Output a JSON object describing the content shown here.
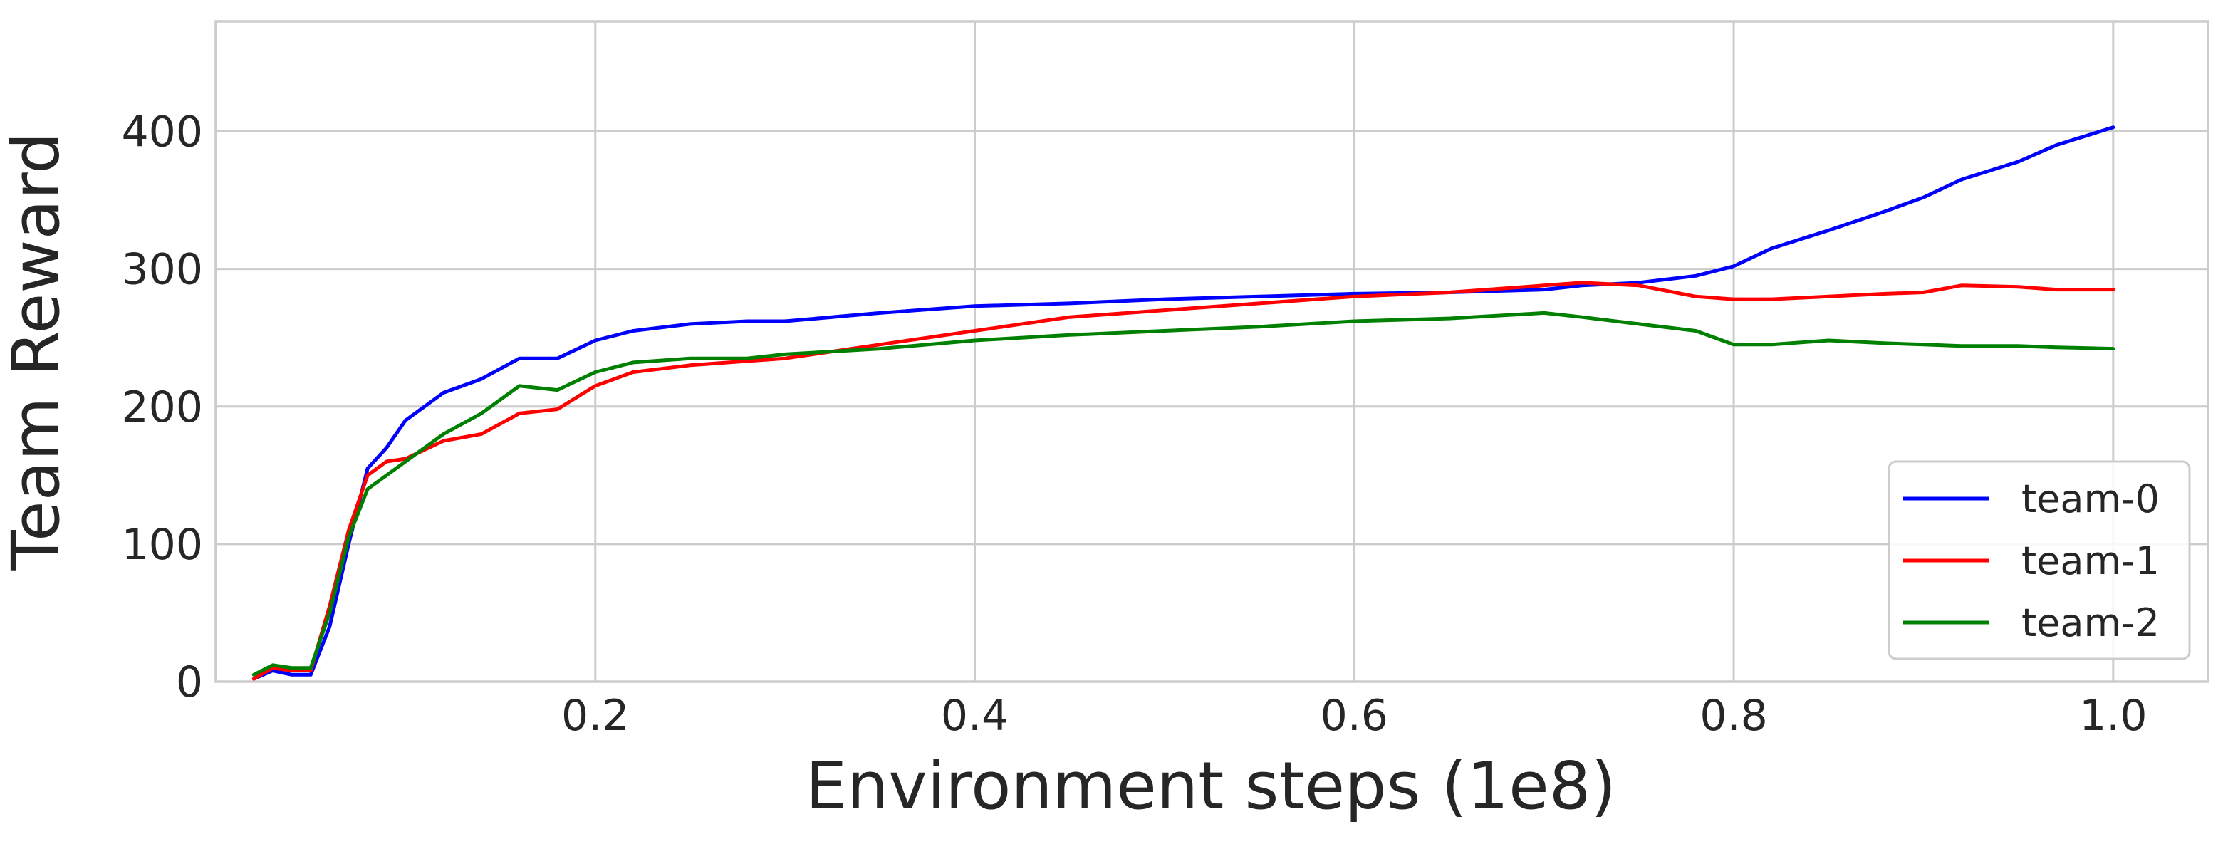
{
  "chart_data": {
    "type": "line",
    "title": "",
    "xlabel": "Environment steps (1e8)",
    "ylabel": "Team Reward",
    "xlim": [
      0.0,
      1.05
    ],
    "ylim": [
      0,
      480
    ],
    "xticks": [
      0.2,
      0.4,
      0.6,
      0.8,
      1.0
    ],
    "xtick_labels": [
      "0.2",
      "0.4",
      "0.6",
      "0.8",
      "1.0"
    ],
    "yticks": [
      0,
      100,
      200,
      300,
      400
    ],
    "ytick_labels": [
      "0",
      "100",
      "200",
      "300",
      "400"
    ],
    "grid": true,
    "legend_position": "lower-right",
    "series": [
      {
        "name": "team-0",
        "color": "#0000ff",
        "x": [
          0.02,
          0.03,
          0.04,
          0.05,
          0.06,
          0.07,
          0.08,
          0.09,
          0.1,
          0.12,
          0.14,
          0.16,
          0.18,
          0.2,
          0.22,
          0.25,
          0.28,
          0.3,
          0.35,
          0.4,
          0.45,
          0.5,
          0.55,
          0.6,
          0.65,
          0.7,
          0.72,
          0.75,
          0.78,
          0.8,
          0.82,
          0.85,
          0.88,
          0.9,
          0.92,
          0.95,
          0.97,
          1.0
        ],
        "y": [
          2,
          8,
          5,
          5,
          40,
          100,
          155,
          170,
          190,
          210,
          220,
          235,
          235,
          248,
          255,
          260,
          262,
          262,
          268,
          273,
          275,
          278,
          280,
          282,
          283,
          285,
          288,
          290,
          295,
          302,
          315,
          328,
          342,
          352,
          365,
          378,
          390,
          403
        ]
      },
      {
        "name": "team-1",
        "color": "#ff0000",
        "x": [
          0.02,
          0.03,
          0.04,
          0.05,
          0.06,
          0.07,
          0.08,
          0.09,
          0.1,
          0.12,
          0.14,
          0.16,
          0.18,
          0.2,
          0.22,
          0.25,
          0.28,
          0.3,
          0.35,
          0.4,
          0.45,
          0.5,
          0.55,
          0.6,
          0.65,
          0.7,
          0.72,
          0.75,
          0.78,
          0.8,
          0.82,
          0.85,
          0.88,
          0.9,
          0.92,
          0.95,
          0.97,
          1.0
        ],
        "y": [
          2,
          10,
          8,
          8,
          55,
          110,
          150,
          160,
          162,
          175,
          180,
          195,
          198,
          215,
          225,
          230,
          233,
          235,
          245,
          255,
          265,
          270,
          275,
          280,
          283,
          288,
          290,
          288,
          280,
          278,
          278,
          280,
          282,
          283,
          288,
          287,
          285,
          285
        ]
      },
      {
        "name": "team-2",
        "color": "#008000",
        "x": [
          0.02,
          0.03,
          0.04,
          0.05,
          0.06,
          0.07,
          0.08,
          0.09,
          0.1,
          0.12,
          0.14,
          0.16,
          0.18,
          0.2,
          0.22,
          0.25,
          0.28,
          0.3,
          0.35,
          0.4,
          0.45,
          0.5,
          0.55,
          0.6,
          0.65,
          0.7,
          0.72,
          0.75,
          0.78,
          0.8,
          0.82,
          0.85,
          0.88,
          0.9,
          0.92,
          0.95,
          0.97,
          1.0
        ],
        "y": [
          5,
          12,
          10,
          10,
          50,
          105,
          140,
          150,
          160,
          180,
          195,
          215,
          212,
          225,
          232,
          235,
          235,
          238,
          242,
          248,
          252,
          255,
          258,
          262,
          264,
          268,
          265,
          260,
          255,
          245,
          245,
          248,
          246,
          245,
          244,
          244,
          243,
          242
        ]
      }
    ]
  }
}
